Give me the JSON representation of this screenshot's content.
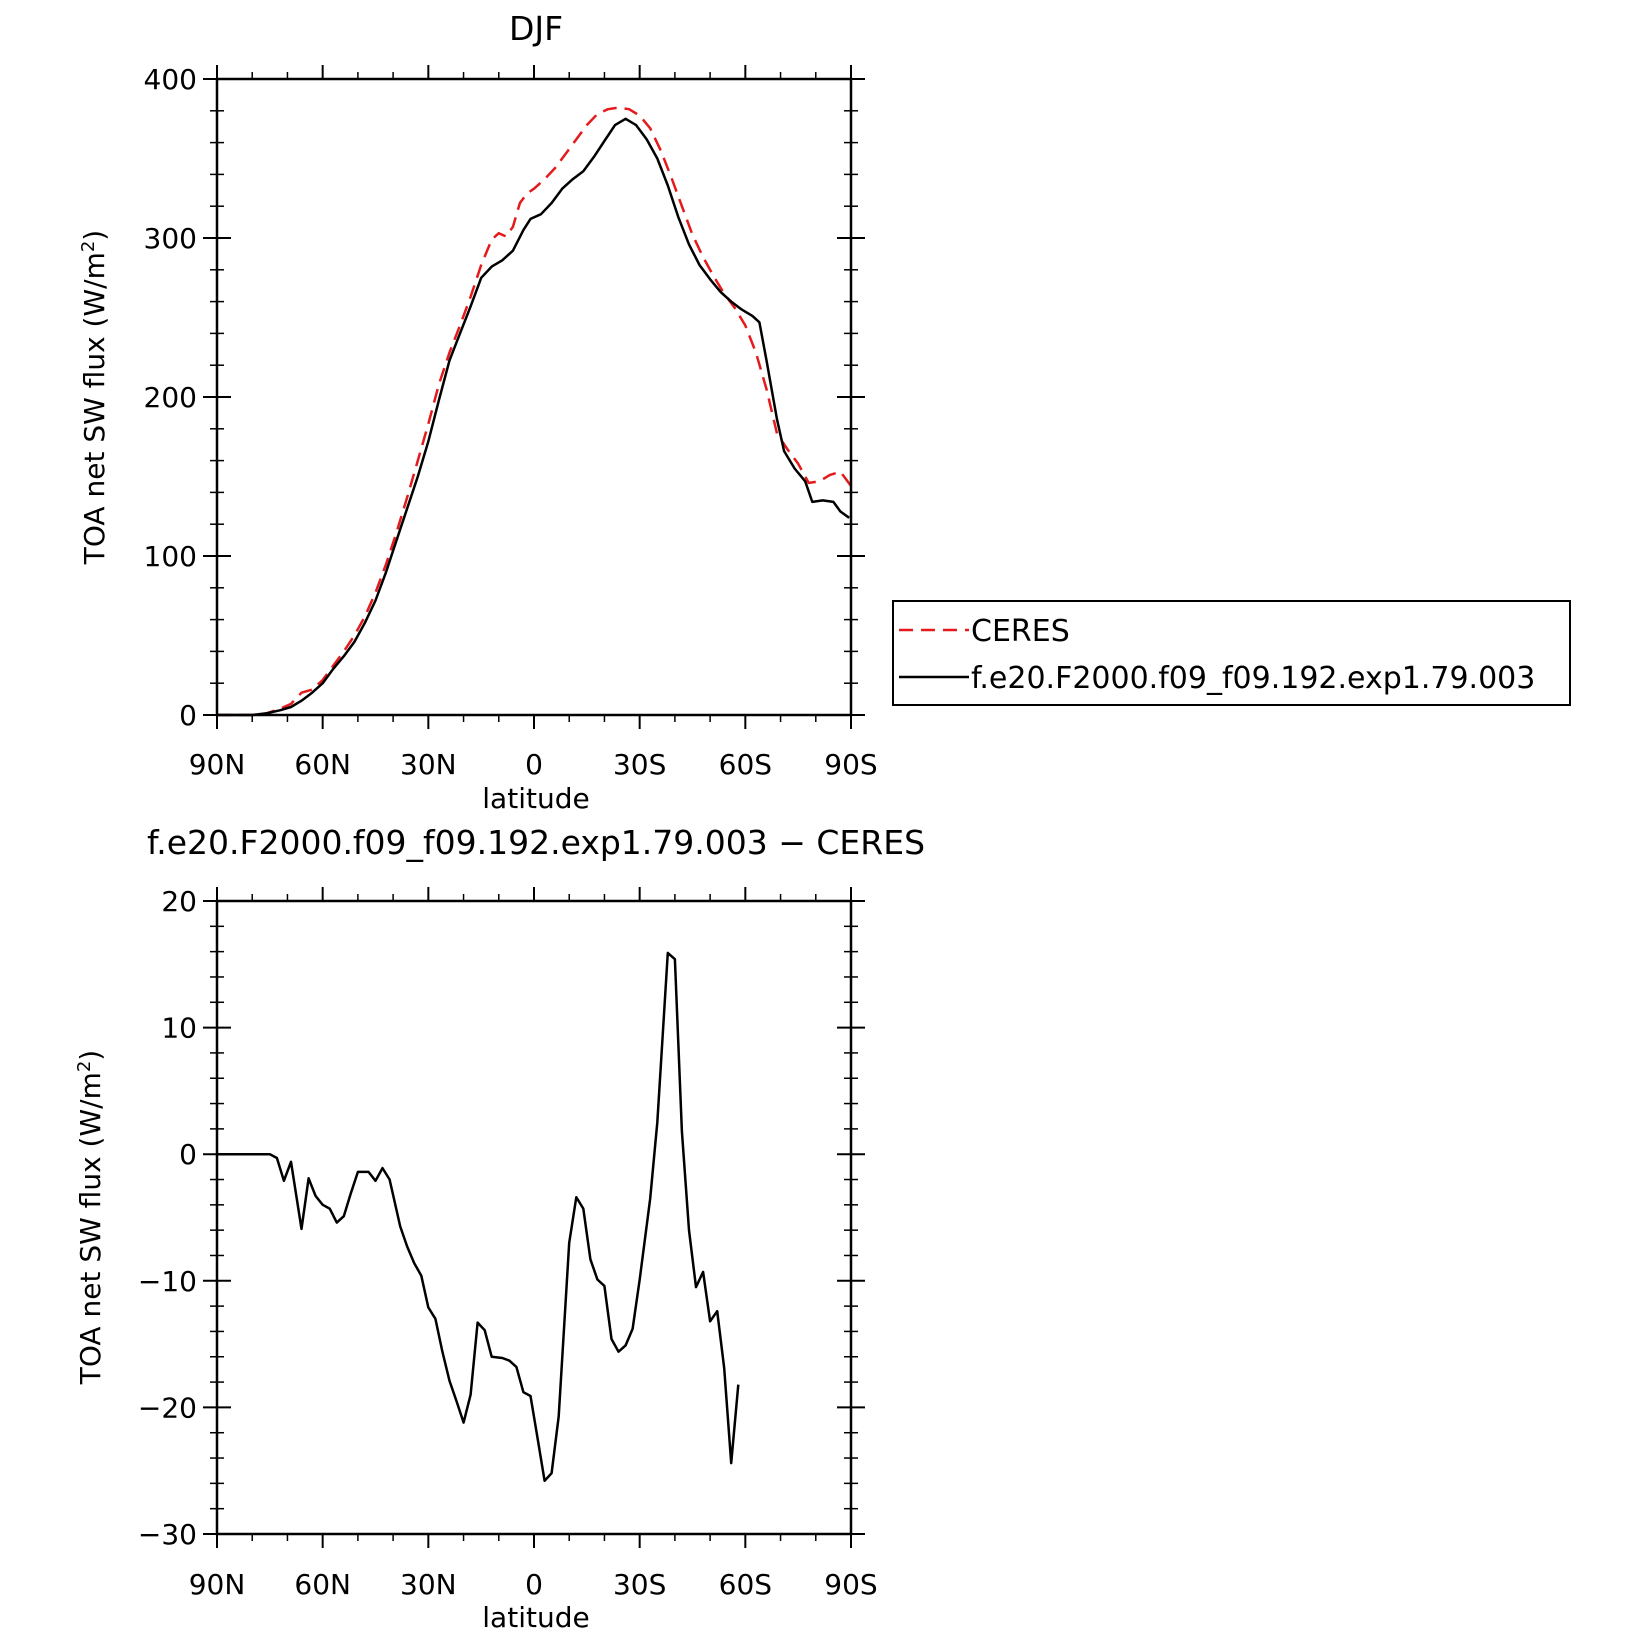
{
  "chart_data": [
    {
      "type": "line",
      "title": "DJF",
      "xlabel": "latitude",
      "ylabel": "TOA net SW flux (W/m²)",
      "ylabel_main": "TOA net SW flux (W/m",
      "ylabel_sup": "2",
      "ylabel_end": ")",
      "xlim": [
        90,
        -90
      ],
      "ylim": [
        0,
        400
      ],
      "x_ticks": [
        90,
        60,
        30,
        0,
        -30,
        -60,
        -90
      ],
      "x_tick_labels": [
        "90N",
        "60N",
        "30N",
        "0",
        "30S",
        "60S",
        "90S"
      ],
      "y_ticks": [
        0,
        100,
        200,
        300,
        400
      ],
      "y_tick_labels": [
        "0",
        "100",
        "200",
        "300",
        "400"
      ],
      "grid": false,
      "legend_position": "right",
      "series": [
        {
          "name": "CERES",
          "color": "#e41a1c",
          "dash": "dashed",
          "points": [
            [
              90,
              0
            ],
            [
              80,
              0
            ],
            [
              76,
              1
            ],
            [
              72,
              4
            ],
            [
              69,
              7
            ],
            [
              66,
              14
            ],
            [
              63,
              16
            ],
            [
              60,
              22
            ],
            [
              57,
              31
            ],
            [
              54,
              40
            ],
            [
              51,
              50
            ],
            [
              48,
              62
            ],
            [
              45,
              77
            ],
            [
              42,
              95
            ],
            [
              39,
              115
            ],
            [
              36,
              137
            ],
            [
              33,
              160
            ],
            [
              30,
              183
            ],
            [
              27,
              208
            ],
            [
              24,
              228
            ],
            [
              21,
              245
            ],
            [
              18,
              263
            ],
            [
              15,
              283
            ],
            [
              12,
              299
            ],
            [
              10,
              303
            ],
            [
              8,
              301
            ],
            [
              6,
              307
            ],
            [
              4,
              322
            ],
            [
              2,
              328
            ],
            [
              0,
              331
            ],
            [
              -3,
              337
            ],
            [
              -6,
              344
            ],
            [
              -9,
              353
            ],
            [
              -12,
              362
            ],
            [
              -15,
              371
            ],
            [
              -18,
              378
            ],
            [
              -21,
              381
            ],
            [
              -24,
              382
            ],
            [
              -27,
              381
            ],
            [
              -30,
              377
            ],
            [
              -33,
              369
            ],
            [
              -36,
              355
            ],
            [
              -39,
              338
            ],
            [
              -42,
              320
            ],
            [
              -45,
              302
            ],
            [
              -48,
              288
            ],
            [
              -51,
              276
            ],
            [
              -54,
              265
            ],
            [
              -57,
              256
            ],
            [
              -60,
              245
            ],
            [
              -63,
              228
            ],
            [
              -66,
              205
            ],
            [
              -69,
              177
            ],
            [
              -72,
              167
            ],
            [
              -75,
              158
            ],
            [
              -78,
              146
            ],
            [
              -81,
              147
            ],
            [
              -84,
              151
            ],
            [
              -87,
              153
            ],
            [
              -90,
              144
            ]
          ]
        },
        {
          "name": "f.e20.F2000.f09_f09.192.exp1.79.003",
          "color": "#000000",
          "dash": "solid",
          "points": [
            [
              90,
              0
            ],
            [
              80,
              0
            ],
            [
              76,
              1
            ],
            [
              72,
              3
            ],
            [
              69,
              5
            ],
            [
              66,
              9
            ],
            [
              63,
              14
            ],
            [
              60,
              20
            ],
            [
              57,
              29
            ],
            [
              54,
              37
            ],
            [
              51,
              46
            ],
            [
              48,
              58
            ],
            [
              45,
              72
            ],
            [
              42,
              90
            ],
            [
              39,
              110
            ],
            [
              36,
              130
            ],
            [
              33,
              150
            ],
            [
              30,
              172
            ],
            [
              27,
              198
            ],
            [
              24,
              223
            ],
            [
              21,
              240
            ],
            [
              18,
              257
            ],
            [
              15,
              275
            ],
            [
              12,
              282
            ],
            [
              9,
              286
            ],
            [
              6,
              292
            ],
            [
              3,
              305
            ],
            [
              1,
              312
            ],
            [
              -2,
              315
            ],
            [
              -5,
              322
            ],
            [
              -8,
              331
            ],
            [
              -11,
              337
            ],
            [
              -14,
              342
            ],
            [
              -17,
              351
            ],
            [
              -20,
              361
            ],
            [
              -23,
              371
            ],
            [
              -26,
              375
            ],
            [
              -29,
              371
            ],
            [
              -32,
              362
            ],
            [
              -35,
              350
            ],
            [
              -38,
              333
            ],
            [
              -41,
              313
            ],
            [
              -44,
              296
            ],
            [
              -47,
              283
            ],
            [
              -50,
              274
            ],
            [
              -53,
              266
            ],
            [
              -56,
              260
            ],
            [
              -59,
              255
            ],
            [
              -62,
              251
            ],
            [
              -64,
              247
            ],
            [
              -66,
              223
            ],
            [
              -69,
              186
            ],
            [
              -71,
              166
            ],
            [
              -74,
              155
            ],
            [
              -77,
              147
            ],
            [
              -79,
              134
            ],
            [
              -82,
              135
            ],
            [
              -85,
              134
            ],
            [
              -87,
              128
            ],
            [
              -89.5,
              124
            ]
          ]
        }
      ]
    },
    {
      "type": "line",
      "title": "f.e20.F2000.f09_f09.192.exp1.79.003 − CERES",
      "xlabel": "latitude",
      "ylabel": "TOA net SW flux (W/m²)",
      "ylabel_main": "TOA net SW flux (W/m",
      "ylabel_sup": "2",
      "ylabel_end": ")",
      "xlim": [
        90,
        -90
      ],
      "ylim": [
        -30,
        20
      ],
      "x_ticks": [
        90,
        60,
        30,
        0,
        -30,
        -60,
        -90
      ],
      "x_tick_labels": [
        "90N",
        "60N",
        "30N",
        "0",
        "30S",
        "60S",
        "90S"
      ],
      "y_ticks": [
        -30,
        -20,
        -10,
        0,
        10,
        20
      ],
      "y_tick_labels": [
        "−30",
        "−20",
        "−10",
        "0",
        "10",
        "20"
      ],
      "grid": false,
      "series": [
        {
          "color": "#000000",
          "dash": "solid",
          "points": [
            [
              90,
              0
            ],
            [
              80,
              0
            ],
            [
              75,
              0
            ],
            [
              73,
              -0.3
            ],
            [
              71,
              -2.1
            ],
            [
              69,
              -0.6
            ],
            [
              66,
              -5.9
            ],
            [
              64,
              -1.9
            ],
            [
              62,
              -3.3
            ],
            [
              60,
              -4
            ],
            [
              58,
              -4.3
            ],
            [
              56,
              -5.4
            ],
            [
              54,
              -4.9
            ],
            [
              52,
              -3.1
            ],
            [
              50,
              -1.4
            ],
            [
              47,
              -1.4
            ],
            [
              45,
              -2.1
            ],
            [
              43,
              -1.1
            ],
            [
              41,
              -2
            ],
            [
              38,
              -5.7
            ],
            [
              36,
              -7.3
            ],
            [
              34,
              -8.6
            ],
            [
              32,
              -9.6
            ],
            [
              30,
              -12.1
            ],
            [
              28,
              -13
            ],
            [
              26,
              -15.6
            ],
            [
              24,
              -17.9
            ],
            [
              22,
              -19.5
            ],
            [
              20,
              -21.2
            ],
            [
              18,
              -19
            ],
            [
              16,
              -13.3
            ],
            [
              14,
              -13.9
            ],
            [
              12,
              -16
            ],
            [
              9,
              -16.1
            ],
            [
              7,
              -16.3
            ],
            [
              5,
              -16.8
            ],
            [
              3,
              -18.8
            ],
            [
              1,
              -19.1
            ],
            [
              -1,
              -22.4
            ],
            [
              -3,
              -25.8
            ],
            [
              -5,
              -25.2
            ],
            [
              -7,
              -20.7
            ],
            [
              -10,
              -7
            ],
            [
              -12,
              -3.4
            ],
            [
              -14,
              -4.3
            ],
            [
              -16,
              -8.3
            ],
            [
              -18,
              -9.9
            ],
            [
              -20,
              -10.4
            ],
            [
              -22,
              -14.6
            ],
            [
              -24,
              -15.6
            ],
            [
              -26,
              -15.1
            ],
            [
              -28,
              -13.8
            ],
            [
              -30,
              -9.9
            ],
            [
              -33,
              -3.5
            ],
            [
              -35,
              2.5
            ],
            [
              -38,
              15.9
            ],
            [
              -40,
              15.4
            ],
            [
              -42,
              1.8
            ],
            [
              -44,
              -6
            ],
            [
              -46,
              -10.5
            ],
            [
              -48,
              -9.3
            ],
            [
              -50,
              -13.2
            ],
            [
              -52,
              -12.4
            ],
            [
              -54,
              -16.9
            ],
            [
              -56,
              -24.4
            ],
            [
              -58,
              -18.2
            ]
          ]
        }
      ]
    }
  ]
}
